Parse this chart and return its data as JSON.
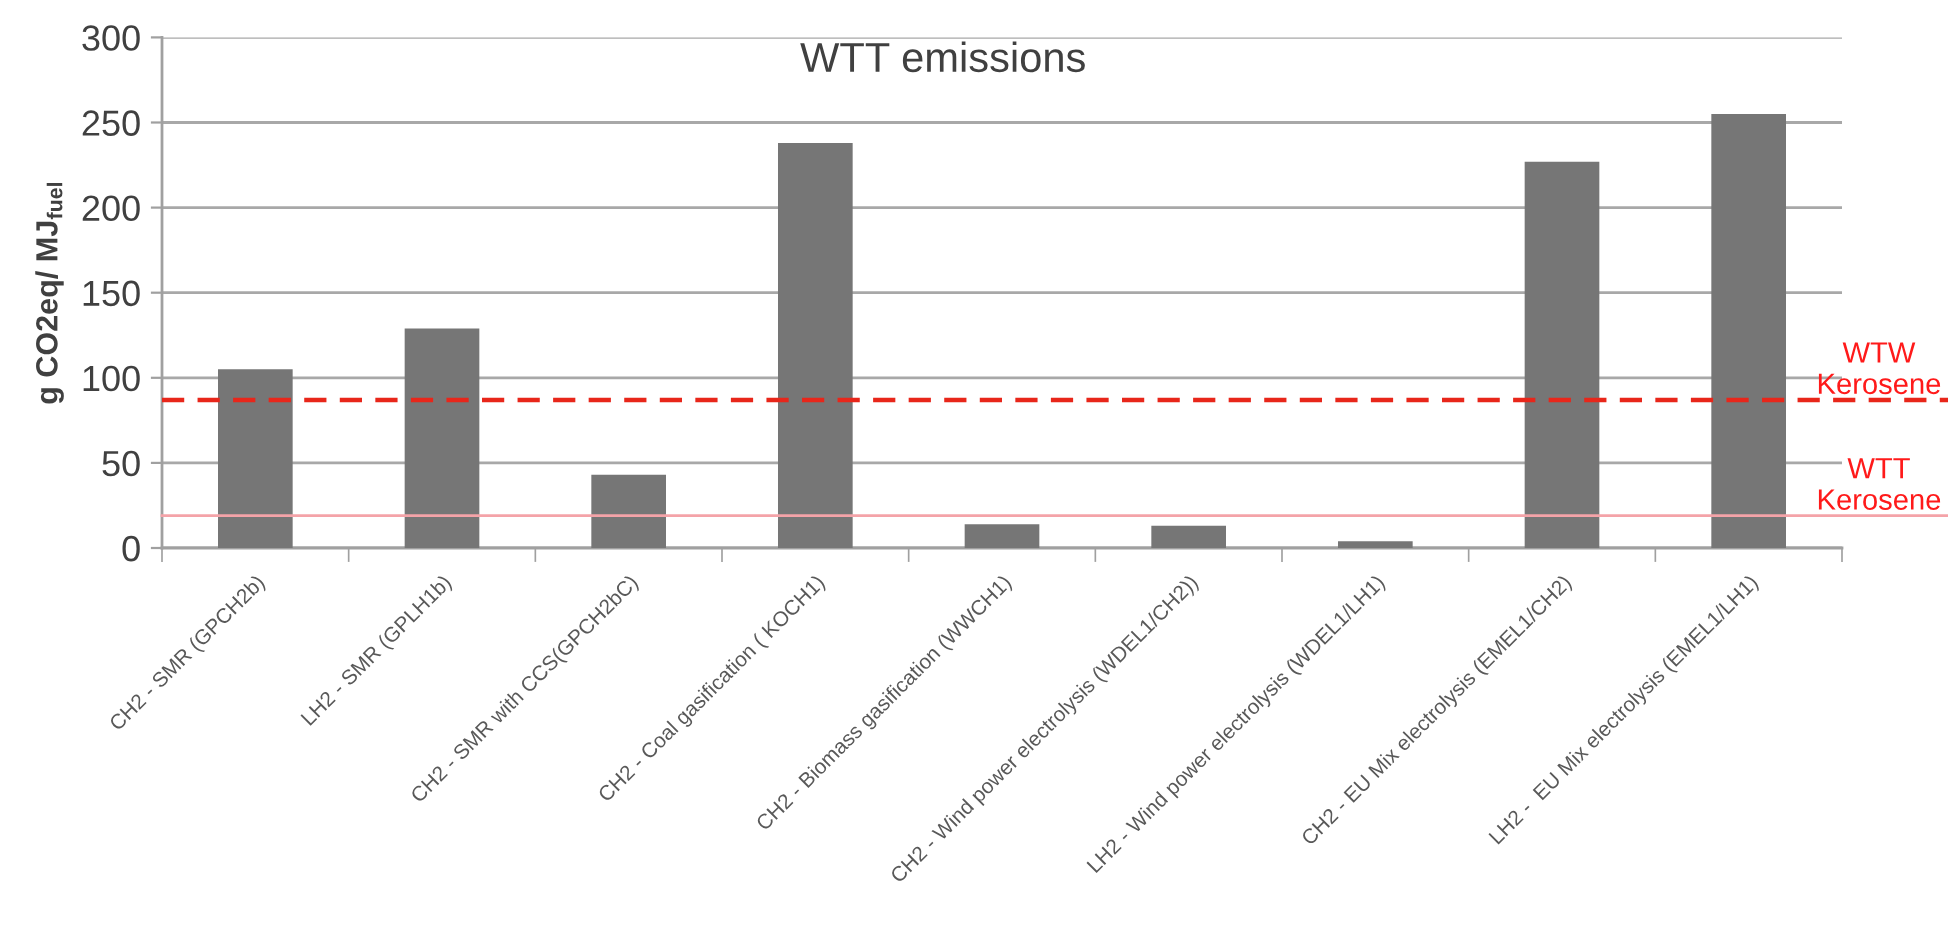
{
  "chart_data": {
    "type": "bar",
    "title": "WTT emissions",
    "ylabel": "g CO2eq/ MJ$_{fuel}$",
    "categories": [
      "CH2 - SMR (GPCH2b)",
      "LH2 - SMR (GPLH1b)",
      "CH2 - SMR with CCS(GPCH2bC)",
      "CH2 - Coal gasification ( KOCH1)",
      "CH2 - Biomass gasification (WWCH1)",
      "CH2 - Wind power electrolysis (WDEL1/CH2))",
      "LH2 - Wind power electrolysis (WDEL1/LH1)",
      "CH2 - EU Mix electrolysis (EMEL1/CH2)",
      "LH2 -  EU Mix electrolysis (EMEL1/LH1)"
    ],
    "values": [
      105,
      129,
      43,
      238,
      14,
      13,
      4,
      227,
      255
    ],
    "color": "#767676",
    "ylim": [
      0,
      300
    ],
    "yticks": [
      0,
      50,
      100,
      150,
      200,
      250,
      300
    ],
    "grid": "y",
    "ref_lines": [
      {
        "axis": "y",
        "value": 87,
        "label": "WTW\nKerosene",
        "color": "#e8261a",
        "line_style": "dashed"
      },
      {
        "axis": "y",
        "value": 19,
        "label": "WTT\nKerosene",
        "color": "#f4a3a8",
        "line_style": "solid"
      }
    ]
  }
}
